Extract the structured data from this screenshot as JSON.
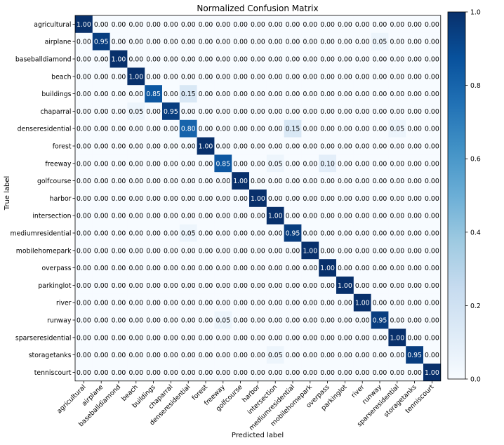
{
  "chart_data": {
    "type": "heatmap",
    "title": "Normalized Confusion Matrix",
    "xlabel": "Predicted label",
    "ylabel": "True label",
    "labels": [
      "agricultural",
      "airplane",
      "baseballdiamond",
      "beach",
      "buildings",
      "chaparral",
      "denseresidential",
      "forest",
      "freeway",
      "golfcourse",
      "harbor",
      "intersection",
      "mediumresidential",
      "mobilehomepark",
      "overpass",
      "parkinglot",
      "river",
      "runway",
      "sparseresidential",
      "storagetanks",
      "tenniscourt"
    ],
    "matrix": [
      [
        1.0,
        0.0,
        0.0,
        0.0,
        0.0,
        0.0,
        0.0,
        0.0,
        0.0,
        0.0,
        0.0,
        0.0,
        0.0,
        0.0,
        0.0,
        0.0,
        0.0,
        0.0,
        0.0,
        0.0,
        0.0
      ],
      [
        0.0,
        0.95,
        0.0,
        0.0,
        0.0,
        0.0,
        0.0,
        0.0,
        0.0,
        0.0,
        0.0,
        0.0,
        0.0,
        0.0,
        0.0,
        0.0,
        0.0,
        0.05,
        0.0,
        0.0,
        0.0
      ],
      [
        0.0,
        0.0,
        1.0,
        0.0,
        0.0,
        0.0,
        0.0,
        0.0,
        0.0,
        0.0,
        0.0,
        0.0,
        0.0,
        0.0,
        0.0,
        0.0,
        0.0,
        0.0,
        0.0,
        0.0,
        0.0
      ],
      [
        0.0,
        0.0,
        0.0,
        1.0,
        0.0,
        0.0,
        0.0,
        0.0,
        0.0,
        0.0,
        0.0,
        0.0,
        0.0,
        0.0,
        0.0,
        0.0,
        0.0,
        0.0,
        0.0,
        0.0,
        0.0
      ],
      [
        0.0,
        0.0,
        0.0,
        0.0,
        0.85,
        0.0,
        0.15,
        0.0,
        0.0,
        0.0,
        0.0,
        0.0,
        0.0,
        0.0,
        0.0,
        0.0,
        0.0,
        0.0,
        0.0,
        0.0,
        0.0
      ],
      [
        0.0,
        0.0,
        0.0,
        0.05,
        0.0,
        0.95,
        0.0,
        0.0,
        0.0,
        0.0,
        0.0,
        0.0,
        0.0,
        0.0,
        0.0,
        0.0,
        0.0,
        0.0,
        0.0,
        0.0,
        0.0
      ],
      [
        0.0,
        0.0,
        0.0,
        0.0,
        0.0,
        0.0,
        0.8,
        0.0,
        0.0,
        0.0,
        0.0,
        0.0,
        0.15,
        0.0,
        0.0,
        0.0,
        0.0,
        0.0,
        0.05,
        0.0,
        0.0
      ],
      [
        0.0,
        0.0,
        0.0,
        0.0,
        0.0,
        0.0,
        0.0,
        1.0,
        0.0,
        0.0,
        0.0,
        0.0,
        0.0,
        0.0,
        0.0,
        0.0,
        0.0,
        0.0,
        0.0,
        0.0,
        0.0
      ],
      [
        0.0,
        0.0,
        0.0,
        0.0,
        0.0,
        0.0,
        0.0,
        0.0,
        0.85,
        0.0,
        0.0,
        0.05,
        0.0,
        0.0,
        0.1,
        0.0,
        0.0,
        0.0,
        0.0,
        0.0,
        0.0
      ],
      [
        0.0,
        0.0,
        0.0,
        0.0,
        0.0,
        0.0,
        0.0,
        0.0,
        0.0,
        1.0,
        0.0,
        0.0,
        0.0,
        0.0,
        0.0,
        0.0,
        0.0,
        0.0,
        0.0,
        0.0,
        0.0
      ],
      [
        0.0,
        0.0,
        0.0,
        0.0,
        0.0,
        0.0,
        0.0,
        0.0,
        0.0,
        0.0,
        1.0,
        0.0,
        0.0,
        0.0,
        0.0,
        0.0,
        0.0,
        0.0,
        0.0,
        0.0,
        0.0
      ],
      [
        0.0,
        0.0,
        0.0,
        0.0,
        0.0,
        0.0,
        0.0,
        0.0,
        0.0,
        0.0,
        0.0,
        1.0,
        0.0,
        0.0,
        0.0,
        0.0,
        0.0,
        0.0,
        0.0,
        0.0,
        0.0
      ],
      [
        0.0,
        0.0,
        0.0,
        0.0,
        0.0,
        0.0,
        0.05,
        0.0,
        0.0,
        0.0,
        0.0,
        0.0,
        0.95,
        0.0,
        0.0,
        0.0,
        0.0,
        0.0,
        0.0,
        0.0,
        0.0
      ],
      [
        0.0,
        0.0,
        0.0,
        0.0,
        0.0,
        0.0,
        0.0,
        0.0,
        0.0,
        0.0,
        0.0,
        0.0,
        0.0,
        1.0,
        0.0,
        0.0,
        0.0,
        0.0,
        0.0,
        0.0,
        0.0
      ],
      [
        0.0,
        0.0,
        0.0,
        0.0,
        0.0,
        0.0,
        0.0,
        0.0,
        0.0,
        0.0,
        0.0,
        0.0,
        0.0,
        0.0,
        1.0,
        0.0,
        0.0,
        0.0,
        0.0,
        0.0,
        0.0
      ],
      [
        0.0,
        0.0,
        0.0,
        0.0,
        0.0,
        0.0,
        0.0,
        0.0,
        0.0,
        0.0,
        0.0,
        0.0,
        0.0,
        0.0,
        0.0,
        1.0,
        0.0,
        0.0,
        0.0,
        0.0,
        0.0
      ],
      [
        0.0,
        0.0,
        0.0,
        0.0,
        0.0,
        0.0,
        0.0,
        0.0,
        0.0,
        0.0,
        0.0,
        0.0,
        0.0,
        0.0,
        0.0,
        0.0,
        1.0,
        0.0,
        0.0,
        0.0,
        0.0
      ],
      [
        0.0,
        0.0,
        0.0,
        0.0,
        0.0,
        0.0,
        0.0,
        0.0,
        0.05,
        0.0,
        0.0,
        0.0,
        0.0,
        0.0,
        0.0,
        0.0,
        0.0,
        0.95,
        0.0,
        0.0,
        0.0
      ],
      [
        0.0,
        0.0,
        0.0,
        0.0,
        0.0,
        0.0,
        0.0,
        0.0,
        0.0,
        0.0,
        0.0,
        0.0,
        0.0,
        0.0,
        0.0,
        0.0,
        0.0,
        0.0,
        1.0,
        0.0,
        0.0
      ],
      [
        0.0,
        0.0,
        0.0,
        0.0,
        0.0,
        0.0,
        0.0,
        0.0,
        0.0,
        0.0,
        0.0,
        0.05,
        0.0,
        0.0,
        0.0,
        0.0,
        0.0,
        0.0,
        0.0,
        0.95,
        0.0
      ],
      [
        0.0,
        0.0,
        0.0,
        0.0,
        0.0,
        0.0,
        0.0,
        0.0,
        0.0,
        0.0,
        0.0,
        0.0,
        0.0,
        0.0,
        0.0,
        0.0,
        0.0,
        0.0,
        0.0,
        0.0,
        1.0
      ]
    ],
    "value_range": [
      0.0,
      1.0
    ],
    "colormap": "Blues",
    "colormap_low": "#f7fbff",
    "colormap_high": "#08306b",
    "colorbar_ticks": [
      0.0,
      0.2,
      0.4,
      0.6,
      0.8,
      1.0
    ],
    "colorbar_tick_labels": [
      "0.0",
      "0.2",
      "0.4",
      "0.6",
      "0.8",
      "1.0"
    ],
    "annotation_text_light": "#ffffff",
    "annotation_text_dark": "#000000",
    "grid": false,
    "legend": "colorbar-right"
  }
}
